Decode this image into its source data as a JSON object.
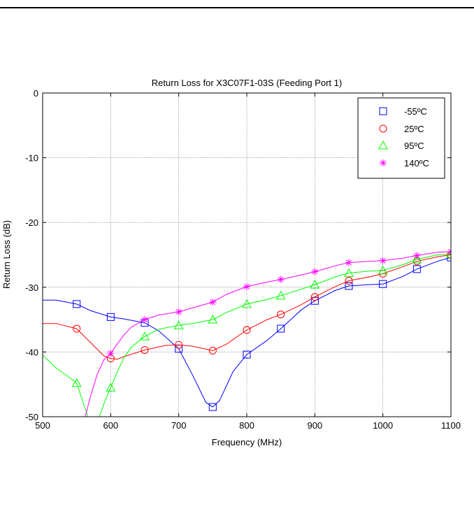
{
  "chart_data": {
    "type": "line",
    "title": "Return Loss for X3C07F1-03S (Feeding Port 1)",
    "xlabel": "Frequency (MHz)",
    "ylabel": "Return Loss (dB)",
    "xlim": [
      500,
      1100
    ],
    "ylim": [
      -50,
      0
    ],
    "xticks": [
      500,
      600,
      700,
      800,
      900,
      1000,
      1100
    ],
    "yticks": [
      -50,
      -40,
      -30,
      -20,
      -10,
      0
    ],
    "grid": true,
    "legend_position": "top-right",
    "series": [
      {
        "name": "-55ºC",
        "color": "#0000ff",
        "marker": "square",
        "x": [
          500,
          520,
          550,
          570,
          600,
          620,
          650,
          670,
          700,
          720,
          740,
          750,
          760,
          780,
          800,
          830,
          850,
          880,
          900,
          930,
          950,
          980,
          1000,
          1030,
          1050,
          1080,
          1100
        ],
        "y": [
          -32,
          -32,
          -32.6,
          -33.6,
          -34.6,
          -34.9,
          -35.5,
          -36.7,
          -39.5,
          -43.5,
          -47.8,
          -48.5,
          -47.5,
          -43,
          -40.4,
          -38.2,
          -36.4,
          -33.5,
          -32.1,
          -30.5,
          -29.8,
          -29.6,
          -29.5,
          -28.3,
          -27.2,
          -26,
          -25.4
        ],
        "markers_x": [
          550,
          600,
          650,
          700,
          750,
          800,
          850,
          900,
          950,
          1000,
          1050,
          1100
        ],
        "markers_y": [
          -32.6,
          -34.6,
          -35.5,
          -39.5,
          -48.5,
          -40.4,
          -36.4,
          -32.1,
          -29.8,
          -29.5,
          -27.2,
          -25.4
        ]
      },
      {
        "name": "25ºC",
        "color": "#ff0000",
        "marker": "circle",
        "x": [
          500,
          520,
          550,
          570,
          590,
          600,
          610,
          620,
          650,
          680,
          700,
          720,
          750,
          770,
          800,
          830,
          850,
          880,
          900,
          930,
          950,
          980,
          1000,
          1030,
          1050,
          1080,
          1100
        ],
        "y": [
          -35.6,
          -35.6,
          -36.4,
          -38.5,
          -40.6,
          -41,
          -41.1,
          -40.7,
          -39.7,
          -39,
          -38.9,
          -39.1,
          -39.8,
          -38.8,
          -36.6,
          -35,
          -34.2,
          -32.7,
          -31.5,
          -29.9,
          -29,
          -28.4,
          -27.9,
          -26.8,
          -26,
          -25.3,
          -25
        ]
      },
      {
        "name": "95ºC",
        "color": "#00ff00",
        "marker": "triangle",
        "x": [
          500,
          520,
          540,
          550,
          560,
          570,
          580,
          590,
          600,
          610,
          620,
          630,
          650,
          670,
          700,
          720,
          750,
          770,
          800,
          830,
          850,
          880,
          900,
          930,
          950,
          980,
          1000,
          1030,
          1050,
          1080,
          1100
        ],
        "y": [
          -40.5,
          -42.5,
          -44,
          -44.8,
          -48,
          -51,
          -51,
          -48,
          -45.5,
          -43,
          -40.8,
          -39.3,
          -37.6,
          -36.5,
          -35.9,
          -35.6,
          -35,
          -33.9,
          -32.6,
          -31.9,
          -31.3,
          -30.3,
          -29.6,
          -28.4,
          -27.8,
          -27.5,
          -27.4,
          -26.5,
          -25.7,
          -25,
          -24.9
        ]
      },
      {
        "name": "140ºC",
        "color": "#ff00ff",
        "marker": "asterisk",
        "x": [
          560,
          570,
          580,
          590,
          600,
          610,
          620,
          630,
          650,
          670,
          700,
          720,
          750,
          770,
          800,
          830,
          850,
          880,
          900,
          930,
          950,
          980,
          1000,
          1030,
          1050,
          1080,
          1100
        ],
        "y": [
          -51,
          -47,
          -43.5,
          -41.2,
          -40.2,
          -38.7,
          -37.3,
          -36.2,
          -35,
          -34.3,
          -33.8,
          -33.2,
          -32.3,
          -31.1,
          -29.9,
          -29.2,
          -28.8,
          -28.1,
          -27.6,
          -26.7,
          -26.2,
          -26,
          -25.9,
          -25.5,
          -25.1,
          -24.6,
          -24.5
        ]
      }
    ]
  }
}
